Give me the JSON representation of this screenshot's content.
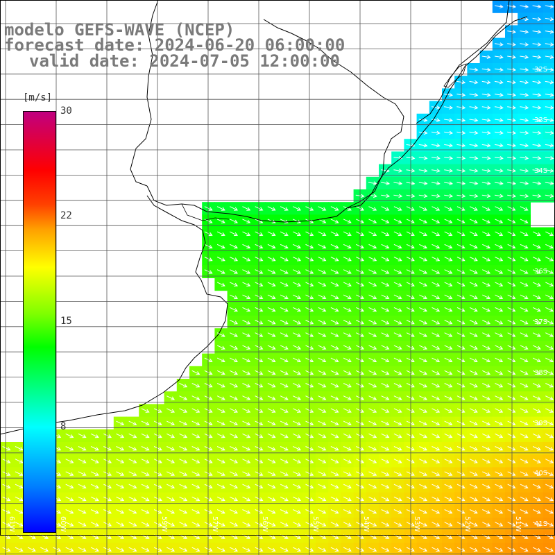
{
  "title": {
    "line1": "modelo GEFS-WAVE (NCEP)",
    "line2": "forecast date: 2024-06-20 06:00:00",
    "line3": "valid date: 2024-07-05 12:00:00"
  },
  "colorbar": {
    "unit": "[m/s]",
    "ticks": [
      "30",
      "22",
      "15",
      "8"
    ],
    "colors": [
      "#0000ff",
      "#0080ff",
      "#00ffff",
      "#00ff00",
      "#80ff00",
      "#ffff00",
      "#ffa000",
      "#ff0000",
      "#c00080"
    ]
  },
  "axes": {
    "lat_labels": [
      "32S",
      "33S",
      "34S",
      "35S",
      "36S",
      "37S",
      "38S",
      "39S",
      "40S",
      "41S"
    ],
    "lon_labels": [
      "61W",
      "60W",
      "59W",
      "57W",
      "56W",
      "55W",
      "54W",
      "53W",
      "52W",
      "51W"
    ]
  },
  "map": {
    "field": "wind speed",
    "arrow_direction": "southeast",
    "land_color": "#ffffff",
    "grid_color": "#555555"
  }
}
